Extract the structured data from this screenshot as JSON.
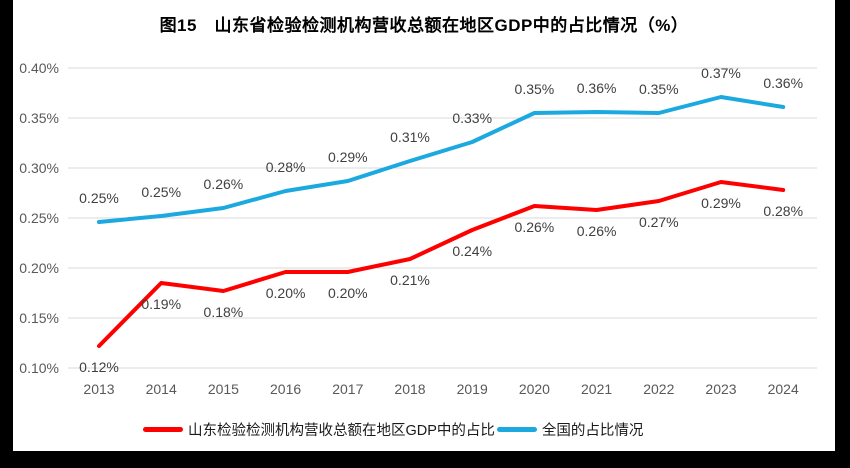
{
  "title": "图15　山东省检验检测机构营收总额在地区GDP中的占比情况（%）",
  "chart_data": {
    "type": "line",
    "title": "图15　山东省检验检测机构营收总额在地区GDP中的占比情况（%）",
    "categories": [
      "2013",
      "2014",
      "2015",
      "2016",
      "2017",
      "2018",
      "2019",
      "2020",
      "2021",
      "2022",
      "2023",
      "2024"
    ],
    "series": [
      {
        "name": "山东检验检测机构营收总额在地区GDP中的占比",
        "color": "#FF0000",
        "values": [
          0.12,
          0.19,
          0.18,
          0.2,
          0.2,
          0.21,
          0.24,
          0.26,
          0.26,
          0.27,
          0.29,
          0.28
        ],
        "labels": [
          "0.12%",
          "0.19%",
          "0.18%",
          "0.20%",
          "0.20%",
          "0.21%",
          "0.24%",
          "0.26%",
          "0.26%",
          "0.27%",
          "0.29%",
          "0.28%"
        ],
        "plot_values": [
          0.122,
          0.185,
          0.177,
          0.196,
          0.196,
          0.209,
          0.238,
          0.262,
          0.258,
          0.267,
          0.286,
          0.278
        ],
        "label_position": "below"
      },
      {
        "name": "全国的占比情况",
        "color": "#1CA9E0",
        "values": [
          0.25,
          0.25,
          0.26,
          0.28,
          0.29,
          0.31,
          0.33,
          0.35,
          0.36,
          0.35,
          0.37,
          0.36
        ],
        "labels": [
          "0.25%",
          "0.25%",
          "0.26%",
          "0.28%",
          "0.29%",
          "0.31%",
          "0.33%",
          "0.35%",
          "0.36%",
          "0.35%",
          "0.37%",
          "0.36%"
        ],
        "plot_values": [
          0.246,
          0.252,
          0.26,
          0.277,
          0.287,
          0.307,
          0.326,
          0.355,
          0.356,
          0.355,
          0.371,
          0.361
        ],
        "label_position": "above"
      }
    ],
    "xlabel": "",
    "ylabel": "",
    "ylim": [
      0.1,
      0.4
    ],
    "yticks": [
      "0.10%",
      "0.15%",
      "0.20%",
      "0.25%",
      "0.30%",
      "0.35%",
      "0.40%"
    ],
    "grid": true,
    "legend_position": "bottom",
    "grid_color": "#D9D9D9",
    "axis_color": "#595959",
    "label_color": "#404040"
  }
}
